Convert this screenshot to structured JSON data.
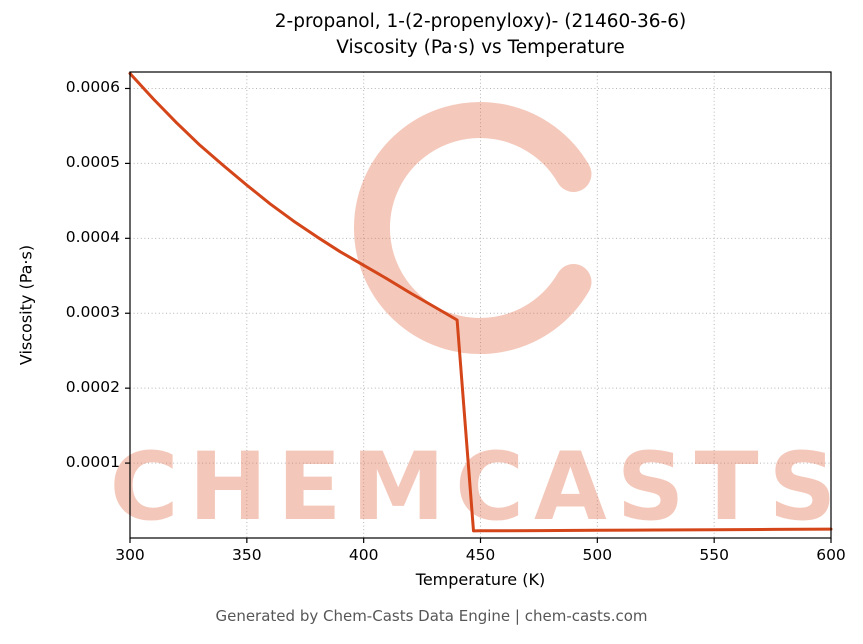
{
  "footer": {
    "text": "Generated by Chem-Casts Data Engine | chem-casts.com"
  },
  "watermark": {
    "text": "CHEMCASTS",
    "color": "#e2704d",
    "opacity": 0.38
  },
  "colors": {
    "grid": "#b5b5b5",
    "axis": "#000000",
    "background": "#ffffff"
  },
  "chart_data": {
    "type": "line",
    "title_lines": [
      "2-propanol, 1-(2-propenyloxy)- (21460-36-6)",
      "Viscosity (Pa·s) vs Temperature"
    ],
    "xlabel": "Temperature (K)",
    "ylabel": "Viscosity (Pa·s)",
    "xlim": [
      300,
      600
    ],
    "ylim": [
      0,
      0.000622
    ],
    "grid": true,
    "legend": false,
    "xticks": {
      "values": [
        300,
        350,
        400,
        450,
        500,
        550,
        600
      ],
      "labels": [
        "300",
        "350",
        "400",
        "450",
        "500",
        "550",
        "600"
      ]
    },
    "yticks": {
      "values": [
        0.0001,
        0.0002,
        0.0003,
        0.0004,
        0.0005,
        0.0006
      ],
      "labels": [
        "0.0001",
        "0.0002",
        "0.0003",
        "0.0004",
        "0.0005",
        "0.0006"
      ]
    },
    "series": [
      {
        "name": "Viscosity (Pa·s)",
        "color": "#d4461a",
        "x": [
          300,
          310,
          320,
          330,
          340,
          350,
          360,
          370,
          380,
          390,
          400,
          410,
          420,
          430,
          440,
          447,
          450,
          475,
          500,
          525,
          550,
          575,
          600
        ],
        "y": [
          0.00062,
          0.000586,
          0.000554,
          0.000524,
          0.000497,
          0.000471,
          0.000446,
          0.000423,
          0.000402,
          0.000382,
          0.000364,
          0.000346,
          0.000327,
          0.000309,
          0.000291,
          9.5e-06,
          9.6e-06,
          9.9e-06,
          1.03e-05,
          1.07e-05,
          1.11e-05,
          1.15e-05,
          1.19e-05
        ]
      }
    ]
  }
}
